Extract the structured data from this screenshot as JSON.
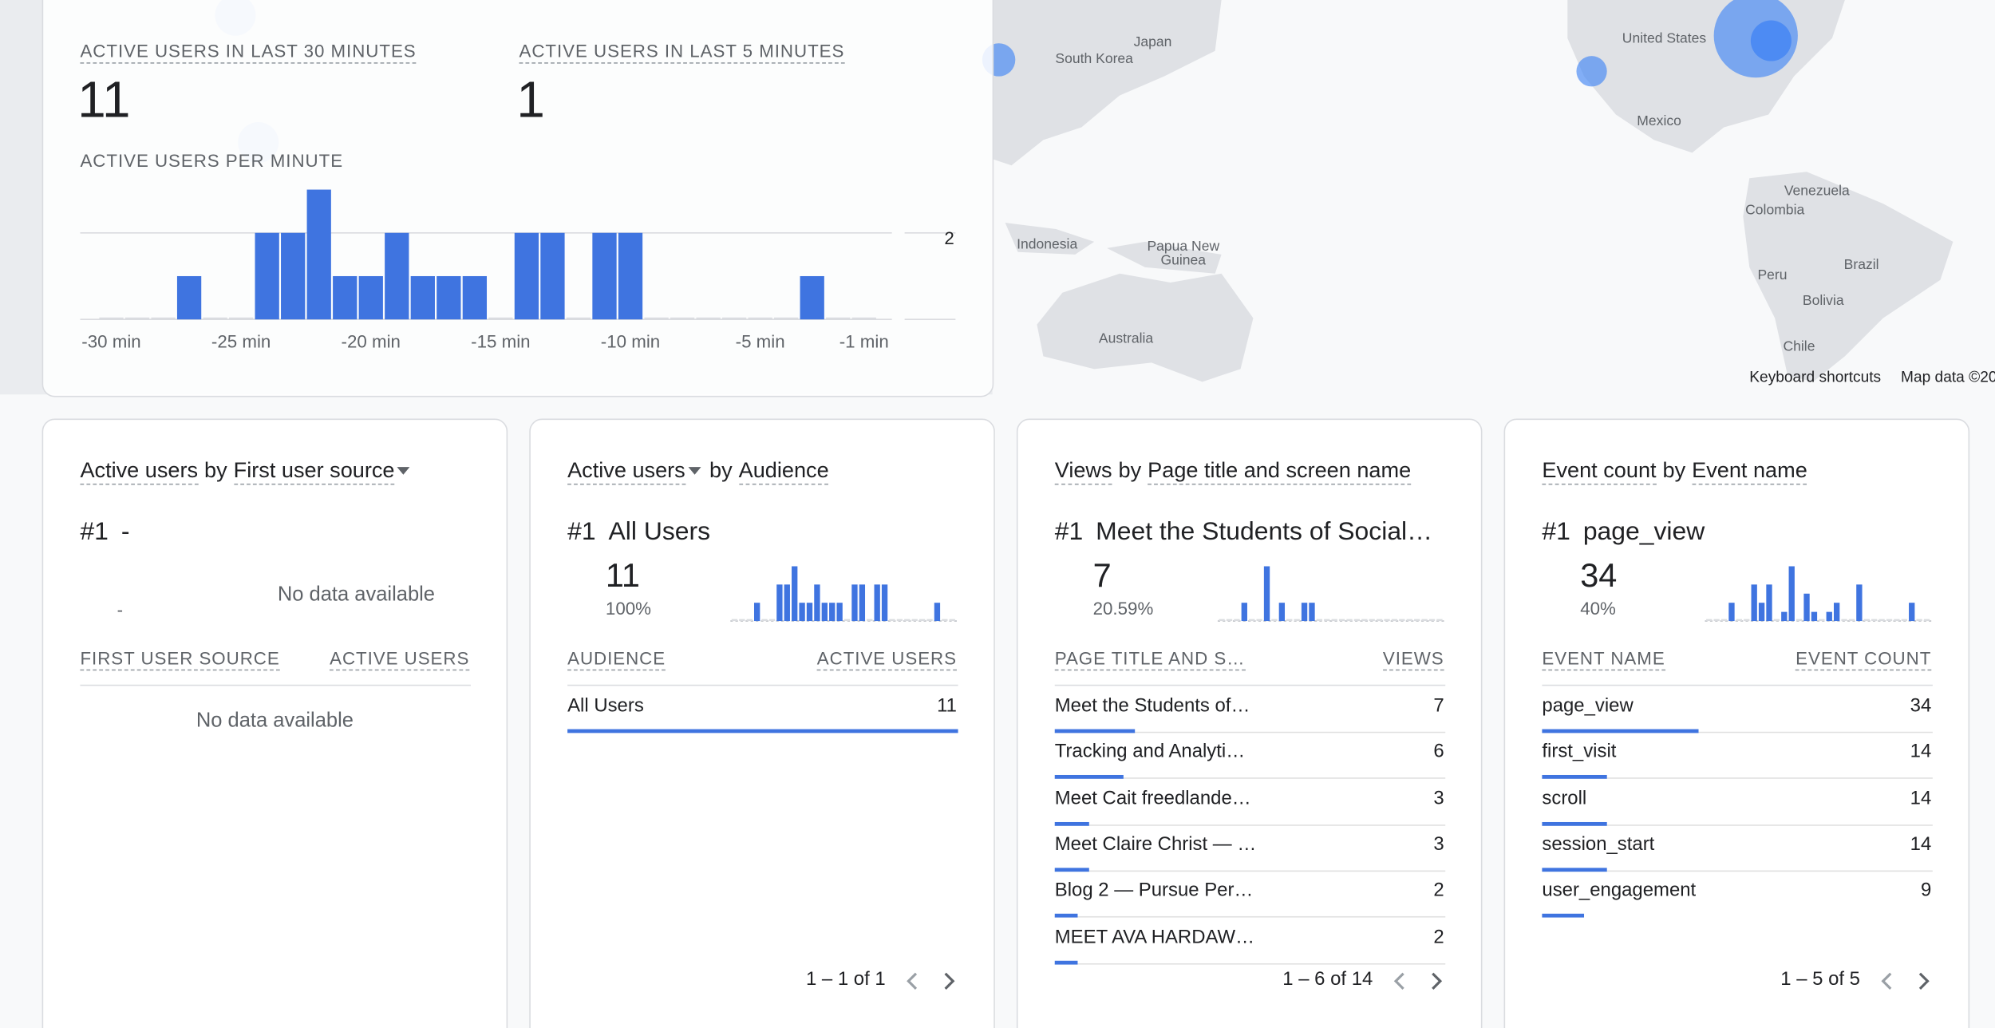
{
  "chart_data": [
    {
      "type": "bar",
      "title": "ACTIVE USERS PER MINUTE",
      "categories": [
        "-30 min",
        null,
        null,
        null,
        null,
        "-25 min",
        null,
        null,
        null,
        null,
        "-20 min",
        null,
        null,
        null,
        null,
        "-15 min",
        null,
        null,
        null,
        null,
        "-10 min",
        null,
        null,
        null,
        null,
        "-5 min",
        null,
        null,
        null,
        "-1 min"
      ],
      "values": [
        0,
        0,
        0,
        1,
        0,
        0,
        2,
        2,
        3,
        1,
        1,
        2,
        1,
        1,
        1,
        0,
        2,
        2,
        0,
        2,
        2,
        0,
        0,
        0,
        0,
        0,
        0,
        1,
        0,
        0
      ],
      "ylim": [
        0,
        3
      ],
      "yticks": [
        2
      ],
      "color": "#3f74e0",
      "grid": true
    },
    {
      "type": "bar",
      "values": [
        0,
        0,
        0,
        1,
        0,
        0,
        2,
        2,
        3,
        1,
        1,
        2,
        1,
        1,
        1,
        0,
        2,
        2,
        0,
        2,
        2,
        0,
        0,
        0,
        0,
        0,
        0,
        1,
        0,
        0
      ],
      "ylim": [
        0,
        3
      ],
      "color": "#3f74e0"
    },
    {
      "type": "bar",
      "values": [
        0,
        0,
        0,
        1,
        0,
        0,
        3,
        0,
        1,
        0,
        0,
        1,
        1,
        0,
        0,
        0,
        0,
        0,
        0,
        0,
        0,
        0,
        0,
        0,
        0,
        0,
        0,
        0,
        0,
        0
      ],
      "ylim": [
        0,
        3
      ],
      "color": "#3f74e0"
    },
    {
      "type": "bar",
      "values": [
        0,
        0,
        0,
        2,
        0,
        0,
        4,
        2,
        4,
        0,
        1,
        6,
        0,
        3,
        1,
        0,
        1,
        2,
        0,
        0,
        4,
        0,
        0,
        0,
        0,
        0,
        0,
        2,
        0,
        0
      ],
      "ylim": [
        0,
        6
      ],
      "color": "#3f74e0"
    }
  ],
  "realtime": {
    "metrics": [
      {
        "label": "ACTIVE USERS IN LAST 30 MINUTES",
        "value": 11
      },
      {
        "label": "ACTIVE USERS IN LAST 5 MINUTES",
        "value": 1
      }
    ]
  },
  "cards": [
    {
      "metric": "Active users",
      "by": "by",
      "dimension": "First user source",
      "rank": "#1",
      "top_name": "-",
      "top_placeholder": "-",
      "top_empty": "No data available",
      "columns": [
        "FIRST USER SOURCE",
        "ACTIVE USERS"
      ],
      "empty": "No data available"
    },
    {
      "metric": "Active users",
      "by": "by",
      "dimension": "Audience",
      "rank": "#1",
      "top_name": "All Users",
      "top_value": 11,
      "top_percent": {
        "value": 100,
        "label": "100%"
      },
      "columns": [
        "AUDIENCE",
        "ACTIVE USERS"
      ],
      "rows": [
        {
          "name": "All Users",
          "value": 11
        }
      ],
      "pagination": "1 – 1 of 1"
    },
    {
      "metric": "Views",
      "by": "by",
      "dimension": "Page title and screen name",
      "rank": "#1",
      "top_name": "Meet the Students of Social…",
      "top_value": 7,
      "top_percent": {
        "value": 20.59,
        "label": "20.59%"
      },
      "columns": [
        "PAGE TITLE AND S…",
        "VIEWS"
      ],
      "rows": [
        {
          "name": "Meet the Students of…",
          "value": 7
        },
        {
          "name": "Tracking and Analyti…",
          "value": 6
        },
        {
          "name": "Meet Cait freedlande…",
          "value": 3
        },
        {
          "name": "Meet Claire Christ — …",
          "value": 3
        },
        {
          "name": "Blog 2 — Pursue Per…",
          "value": 2
        },
        {
          "name": "MEET AVA HARDAW…",
          "value": 2
        }
      ],
      "pagination": "1 – 6 of 14"
    },
    {
      "metric": "Event count",
      "by": "by",
      "dimension": "Event name",
      "rank": "#1",
      "top_name": "page_view",
      "top_value": 34,
      "top_percent": {
        "value": 40,
        "label": "40%"
      },
      "columns": [
        "EVENT NAME",
        "EVENT COUNT"
      ],
      "rows": [
        {
          "name": "page_view",
          "value": 34
        },
        {
          "name": "first_visit",
          "value": 14
        },
        {
          "name": "scroll",
          "value": 14
        },
        {
          "name": "session_start",
          "value": 14
        },
        {
          "name": "user_engagement",
          "value": 9
        }
      ],
      "pagination": "1 – 5 of 5"
    }
  ],
  "map": {
    "labels": [
      "South Korea",
      "Japan",
      "Indonesia",
      "Papua New Guinea",
      "Australia",
      "United States",
      "Mexico",
      "Venezuela",
      "Colombia",
      "Peru",
      "Brazil",
      "Bolivia",
      "Chile"
    ],
    "keyboard": "Keyboard shortcuts",
    "attribution": "Map data ©20"
  }
}
